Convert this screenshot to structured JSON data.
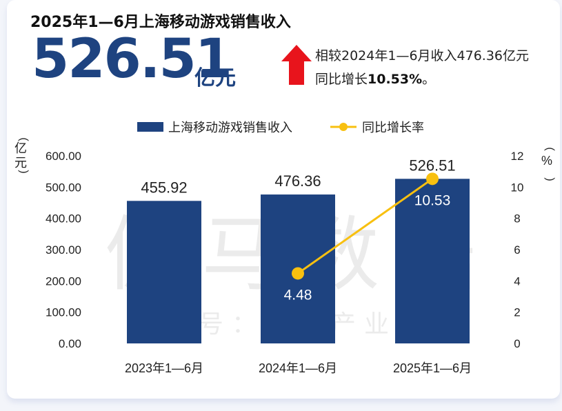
{
  "header": {
    "title": "2025年1—6月上海移动游戏销售收入",
    "value": "526.51",
    "unit": "亿元",
    "compare_line1": "相较2024年1—6月收入476.36亿元",
    "compare_line2_prefix": "同比增长",
    "compare_rate": "10.53%",
    "compare_line2_suffix": "。"
  },
  "watermark": {
    "main": "伽马数据",
    "sub": "微信号：游戏产业报告"
  },
  "colors": {
    "bar": "#1e4380",
    "line": "#f8c010",
    "arrow": "#e8141c",
    "accent_text": "#1e4380"
  },
  "chart_data": {
    "type": "bar",
    "categories": [
      "2023年1—6月",
      "2024年1—6月",
      "2025年1—6月"
    ],
    "series": [
      {
        "name": "上海移动游戏销售收入",
        "type": "bar",
        "axis": "left",
        "values": [
          455.92,
          476.36,
          526.51
        ],
        "labels": [
          "455.92",
          "476.36",
          "526.51"
        ]
      },
      {
        "name": "同比增长率",
        "type": "line",
        "axis": "right",
        "values": [
          null,
          4.48,
          10.53
        ],
        "labels": [
          "",
          "4.48",
          "10.53"
        ]
      }
    ],
    "ylabel_left": "亿元",
    "ylabel_right": "%",
    "ylim_left": [
      0,
      600
    ],
    "ylim_right": [
      0,
      12
    ],
    "yticks_left": [
      "0.00",
      "100.00",
      "200.00",
      "300.00",
      "400.00",
      "500.00",
      "600.00"
    ],
    "yticks_right": [
      "0",
      "2",
      "4",
      "6",
      "8",
      "10",
      "12"
    ],
    "grid": false,
    "legend": "top-center"
  }
}
